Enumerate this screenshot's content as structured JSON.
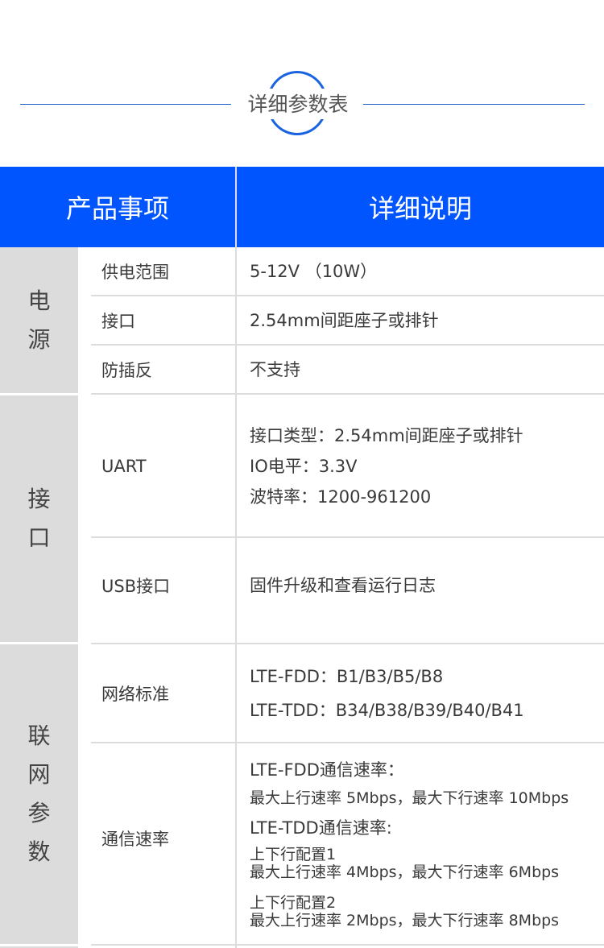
{
  "section_title": "详细参数表",
  "header": {
    "col1": "产品事项",
    "col2": "详细说明"
  },
  "groups": [
    {
      "name": "电源",
      "rows": [
        {
          "item": "供电范围",
          "desc": [
            "5-12V （10W）"
          ]
        },
        {
          "item": "接口",
          "desc": [
            "2.54mm间距座子或排针"
          ]
        },
        {
          "item": "防插反",
          "desc": [
            "不支持"
          ]
        }
      ]
    },
    {
      "name": "接口",
      "rows": [
        {
          "item": "UART",
          "desc": [
            "接口类型：2.54mm间距座子或排针",
            "IO电平：3.3V",
            "波特率：1200-961200"
          ]
        },
        {
          "item": "USB接口",
          "desc": [
            "固件升级和查看运行日志"
          ]
        }
      ]
    },
    {
      "name": "联网参数",
      "rows": [
        {
          "item": "网络标准",
          "desc": [
            "LTE-FDD：B1/B3/B5/B8",
            "LTE-TDD：B34/B38/B39/B40/B41"
          ]
        },
        {
          "item": "通信速率",
          "desc": [
            "LTE-FDD通信速率：",
            "最大上行速率 5Mbps，最大下行速率 10Mbps",
            "LTE-TDD通信速率:",
            "上下行配置1",
            "最大上行速率 4Mbps，最大下行速率 6Mbps",
            "上下行配置2",
            "最大上行速率 2Mbps，最大下行速率 8Mbps"
          ]
        }
      ]
    }
  ],
  "colors": {
    "header": "#0055ff",
    "category_bg": "#dcdcdc",
    "accent_line": "#1a5fc8"
  }
}
